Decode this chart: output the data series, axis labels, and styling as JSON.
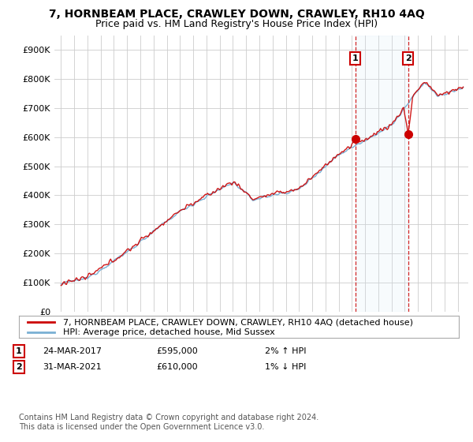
{
  "title": "7, HORNBEAM PLACE, CRAWLEY DOWN, CRAWLEY, RH10 4AQ",
  "subtitle": "Price paid vs. HM Land Registry's House Price Index (HPI)",
  "ylabel_ticks": [
    "£0",
    "£100K",
    "£200K",
    "£300K",
    "£400K",
    "£500K",
    "£600K",
    "£700K",
    "£800K",
    "£900K"
  ],
  "ytick_values": [
    0,
    100000,
    200000,
    300000,
    400000,
    500000,
    600000,
    700000,
    800000,
    900000
  ],
  "ylim": [
    0,
    950000
  ],
  "legend_label_red": "7, HORNBEAM PLACE, CRAWLEY DOWN, CRAWLEY, RH10 4AQ (detached house)",
  "legend_label_blue": "HPI: Average price, detached house, Mid Sussex",
  "annotation1_date": "24-MAR-2017",
  "annotation1_price": "£595,000",
  "annotation1_hpi": "2% ↑ HPI",
  "annotation1_year": 2017.25,
  "annotation1_value": 595000,
  "annotation2_date": "31-MAR-2021",
  "annotation2_price": "£610,000",
  "annotation2_hpi": "1% ↓ HPI",
  "annotation2_year": 2021.25,
  "annotation2_value": 610000,
  "red_color": "#cc0000",
  "blue_color": "#7ab0d4",
  "shade_color": "#d6eaf8",
  "vline_color": "#cc0000",
  "grid_color": "#cccccc",
  "background_color": "#ffffff",
  "footer_text": "Contains HM Land Registry data © Crown copyright and database right 2024.\nThis data is licensed under the Open Government Licence v3.0.",
  "title_fontsize": 10,
  "subtitle_fontsize": 9,
  "tick_fontsize": 8,
  "legend_fontsize": 8,
  "annot_fontsize": 8
}
